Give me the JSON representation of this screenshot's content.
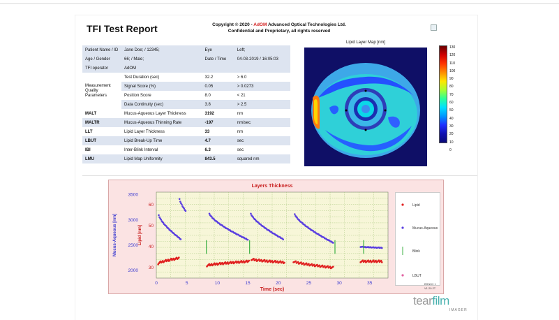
{
  "report": {
    "title": "TFI Test Report",
    "copyright_prefix": "Copyright © 2020 - ",
    "copyright_brand": "AdOM",
    "copyright_suffix": " Advanced Optical Technologies Ltd.",
    "confidential": "Confidential and Proprietary, all rights reserved"
  },
  "info_table": {
    "rows": [
      {
        "style": "alt",
        "c1": "Patient Name / ID",
        "c2": "Jane Doe; / 12345;",
        "c3": "Eye",
        "c4": "Left;"
      },
      {
        "style": "alt",
        "c1": "Age / Gender",
        "c2": "66; / Male;",
        "c3": "Date / Time",
        "c4": "04-03-2019 / 16:05:03"
      },
      {
        "style": "alt",
        "c1": "TFI operator",
        "c2": "AdOM",
        "c3": "",
        "c4": ""
      },
      {
        "style": "plain",
        "c1": "",
        "c2": "Test Duration (sec)",
        "c3": "32.2",
        "c4": "> 6.0"
      },
      {
        "style": "alt",
        "c1": "",
        "c2": "Signal Score (%)",
        "c3": "0.05",
        "c4": "> 0.0273"
      },
      {
        "style": "plain",
        "c1": "",
        "c2": "Position Score",
        "c3": "8.0",
        "c4": "< 21"
      },
      {
        "style": "alt",
        "c1": "",
        "c2": "Data Continuity (sec)",
        "c3": "3.8",
        "c4": "> 2.5"
      },
      {
        "style": "plain",
        "c1": "MALT",
        "c2": "Mucus-Aqueous Layer Thickness",
        "c3": "3192",
        "c4": "nm",
        "bold": true
      },
      {
        "style": "alt",
        "c1": "MALTR",
        "c2": "Mucus-Aqueous Thinning Rate",
        "c3": "-197",
        "c4": "nm/sec",
        "bold": true
      },
      {
        "style": "plain",
        "c1": "LLT",
        "c2": "Lipid Layer Thickness",
        "c3": "33",
        "c4": "nm",
        "bold": true
      },
      {
        "style": "alt",
        "c1": "LBUT",
        "c2": "Lipid Break-Up Time",
        "c3": "4.7",
        "c4": "sec",
        "bold": true
      },
      {
        "style": "plain",
        "c1": "IBI",
        "c2": "Inter-Blink Interval",
        "c3": "6.3",
        "c4": "sec",
        "bold": true
      },
      {
        "style": "alt",
        "c1": "LMU",
        "c2": "Lipid Map Uniformity",
        "c3": "843.5",
        "c4": "squared nm",
        "bold": true
      }
    ],
    "group_label_1": "Measurement",
    "group_label_2": "Quality",
    "group_label_3": "Parameters"
  },
  "lipid_map": {
    "title": "Lipid Layer Map [nm]",
    "colorbar_ticks": [
      "130",
      "120",
      "110",
      "100",
      "90",
      "80",
      "70",
      "60",
      "50",
      "40",
      "30",
      "20",
      "10",
      "0"
    ]
  },
  "chart_data": {
    "type": "scatter",
    "title": "Layers Thickness",
    "xlabel": "Time (sec)",
    "ylabel_left": "Mucus-Aqueous [nm]",
    "ylabel_right": "Lipid [nm]",
    "xlim": [
      0,
      38
    ],
    "x_ticks": [
      0,
      5,
      10,
      15,
      20,
      25,
      30,
      35
    ],
    "y_left_ticks": [
      2000,
      2500,
      3000,
      3500
    ],
    "y_left_lim": [
      1850,
      3550
    ],
    "y_right_ticks": [
      30,
      40,
      50,
      60
    ],
    "y_right_lim": [
      25,
      66
    ],
    "series": [
      {
        "name": "Lipid",
        "color": "#e02020",
        "axis": "right",
        "segments": [
          {
            "x0": 0.3,
            "x1": 3.7,
            "y0": 32,
            "y1": 34.5
          },
          {
            "x0": 8.3,
            "x1": 15.2,
            "y0": 31,
            "y1": 33
          },
          {
            "x0": 15.6,
            "x1": 21.0,
            "y0": 34,
            "y1": 32.5
          },
          {
            "x0": 22.5,
            "x1": 29.0,
            "y0": 33,
            "y1": 30
          },
          {
            "x0": 33.5,
            "x1": 37.0,
            "y0": 33,
            "y1": 33
          }
        ]
      },
      {
        "name": "Mucus-Aqueous",
        "color": "#5a3fe0",
        "axis": "left",
        "segments": [
          {
            "x0": 0.4,
            "x1": 4.0,
            "y0": 3100,
            "y1": 2620
          },
          {
            "x0": 3.8,
            "x1": 4.8,
            "y0": 3420,
            "y1": 3180
          },
          {
            "x0": 8.7,
            "x1": 15.0,
            "y0": 3130,
            "y1": 2610
          },
          {
            "x0": 15.5,
            "x1": 20.8,
            "y0": 3130,
            "y1": 2620
          },
          {
            "x0": 22.7,
            "x1": 29.0,
            "y0": 3120,
            "y1": 2550
          },
          {
            "x0": 33.5,
            "x1": 37.0,
            "y0": 2470,
            "y1": 2450
          }
        ]
      },
      {
        "name": "Blink",
        "color": "#3cb043",
        "axis": "left",
        "x": [
          8.2,
          15.3,
          29.3,
          34.0
        ]
      },
      {
        "name": "LBUT",
        "color": "#e060a0",
        "axis": "left",
        "x": []
      }
    ],
    "grid": true,
    "legend_placement": "right"
  },
  "footer": {
    "version_line_1": "BSN0H 1",
    "version_line_2": "V1.20.2T",
    "logo_tear": "tear",
    "logo_film": "film",
    "logo_imager": "IMAGER"
  }
}
